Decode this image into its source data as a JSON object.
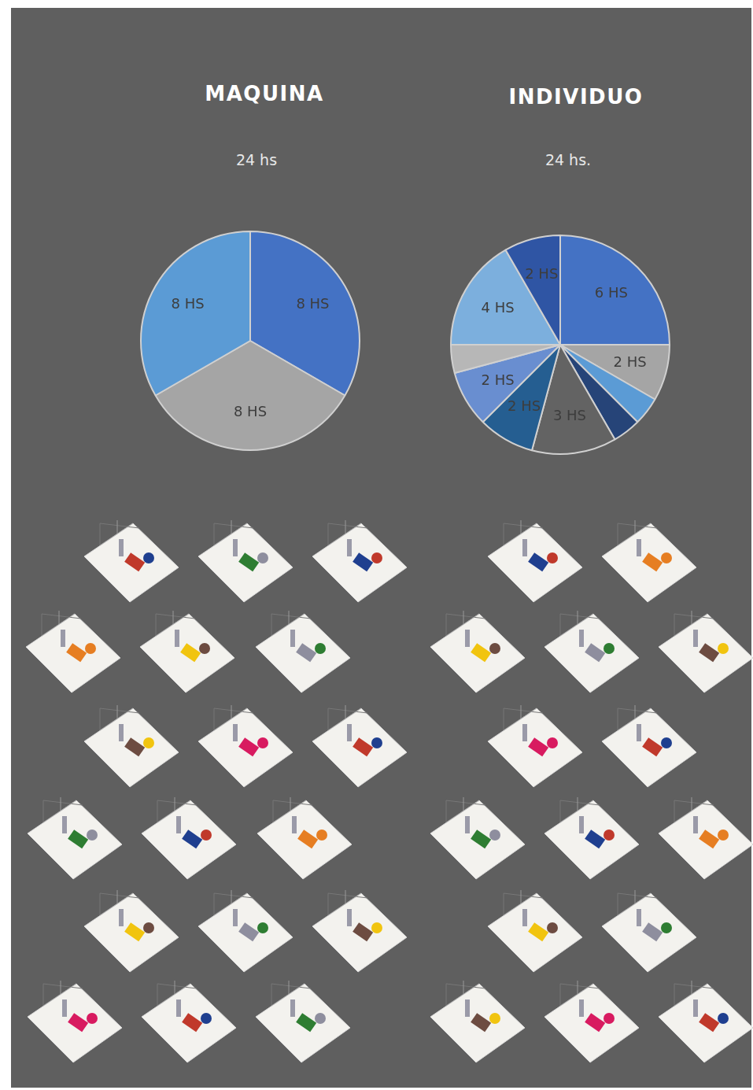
{
  "chart_data": [
    {
      "type": "pie",
      "title": "MAQUINA",
      "subtitle": "24 hs",
      "values": [
        8,
        8,
        8
      ],
      "value_labels": [
        "8 HS",
        "8 HS",
        "8 HS"
      ],
      "colors": [
        "#4472c4",
        "#a5a5a5",
        "#5b9bd5"
      ],
      "data_labels": true
    },
    {
      "type": "pie",
      "title": "INDIVIDUO",
      "subtitle": "24 hs.",
      "values": [
        6,
        2,
        1,
        1,
        3,
        2,
        2,
        1,
        4,
        2
      ],
      "value_labels": [
        "6 HS",
        "2 HS",
        null,
        null,
        "3 HS",
        "2 HS",
        "2 HS",
        null,
        "4 HS",
        "2 HS"
      ],
      "colors": [
        "#4472c4",
        "#a5a5a5",
        "#5b9bd5",
        "#264478",
        "#636363",
        "#255e91",
        "#698ed0",
        "#b7b7b7",
        "#7cafdd",
        "#2f55a4"
      ],
      "data_labels": true
    }
  ]
}
